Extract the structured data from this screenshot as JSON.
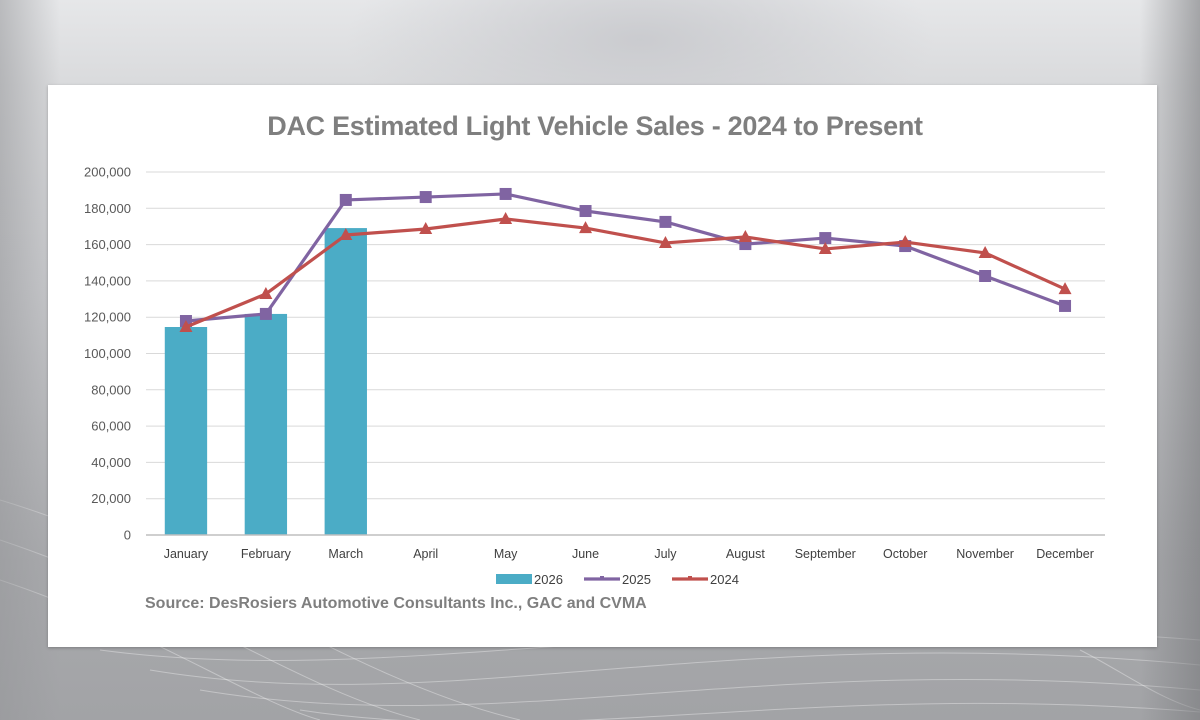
{
  "chart_data": {
    "type": "bar+line",
    "title": "DAC Estimated Light Vehicle Sales - 2024 to Present",
    "source": "Source:  DesRosiers Automotive Consultants Inc., GAC and CVMA",
    "xlabel": "",
    "ylabel": "",
    "categories": [
      "January",
      "February",
      "March",
      "April",
      "May",
      "June",
      "July",
      "August",
      "September",
      "October",
      "November",
      "December"
    ],
    "ylim": [
      0,
      200000
    ],
    "yticks": [
      0,
      20000,
      40000,
      60000,
      80000,
      100000,
      120000,
      140000,
      160000,
      180000,
      200000
    ],
    "ytick_labels": [
      "0",
      "20,000",
      "40,000",
      "60,000",
      "80,000",
      "100,000",
      "120,000",
      "140,000",
      "160,000",
      "180,000",
      "200,000"
    ],
    "grid": true,
    "legend_position": "bottom",
    "series": [
      {
        "name": "2026",
        "kind": "bar",
        "color": "#4bacc6",
        "values": [
          114600,
          121800,
          169100,
          null,
          null,
          null,
          null,
          null,
          null,
          null,
          null,
          null
        ]
      },
      {
        "name": "2025",
        "kind": "line",
        "marker": "square",
        "color": "#8064a2",
        "values": [
          117900,
          121800,
          184600,
          186200,
          187900,
          178500,
          172500,
          160300,
          163600,
          159200,
          142700,
          126200
        ]
      },
      {
        "name": "2024",
        "kind": "line",
        "marker": "triangle",
        "color": "#c0504d",
        "values": [
          114600,
          132800,
          165300,
          168600,
          174100,
          169100,
          160900,
          164200,
          157600,
          161400,
          155400,
          135500
        ]
      }
    ]
  }
}
